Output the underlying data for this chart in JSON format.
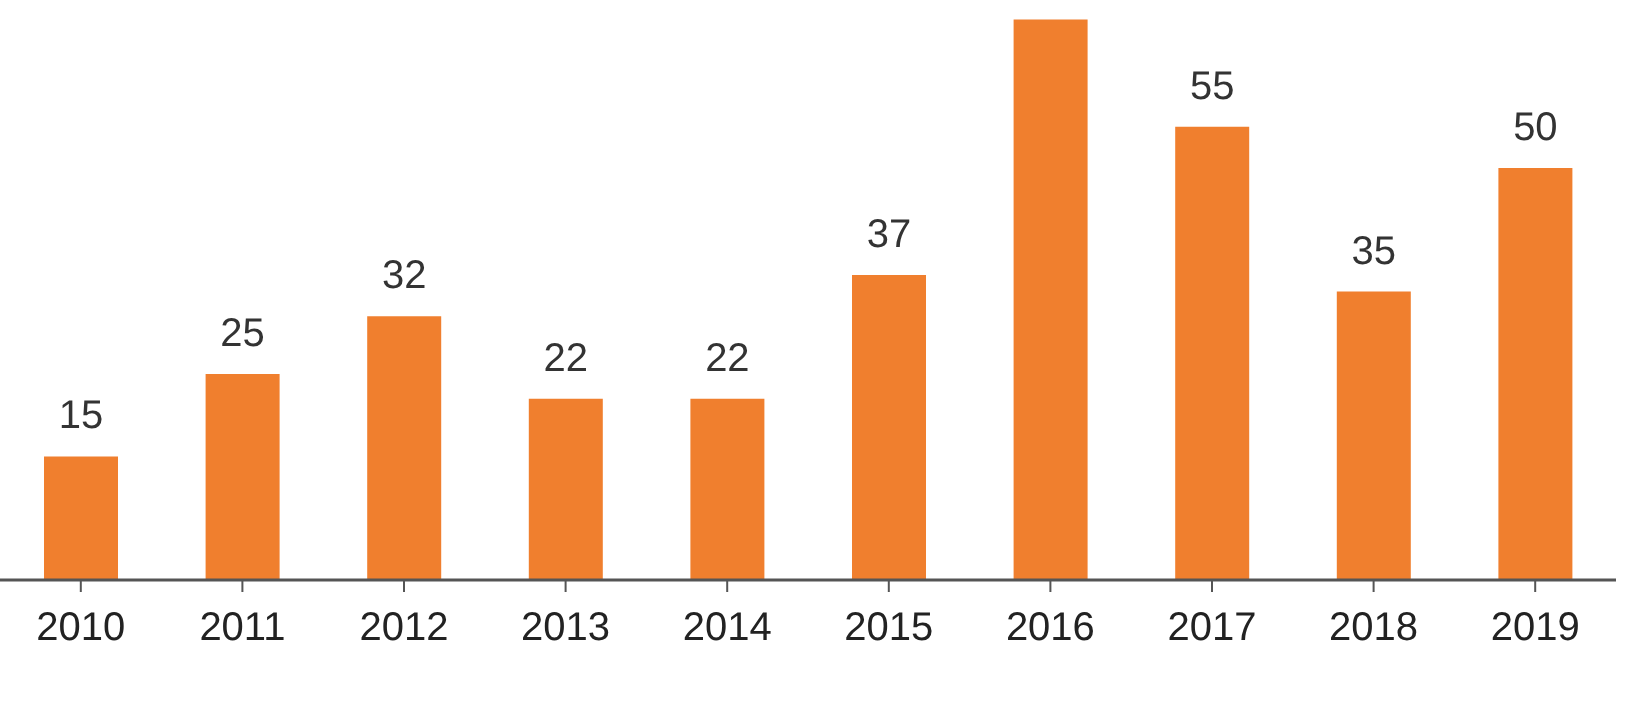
{
  "chart_data": {
    "type": "bar",
    "categories": [
      "2010",
      "2011",
      "2012",
      "2013",
      "2014",
      "2015",
      "2016",
      "2017",
      "2018",
      "2019"
    ],
    "values": [
      15,
      25,
      32,
      22,
      22,
      37,
      68,
      55,
      35,
      50
    ],
    "value_labels": [
      "15",
      "25",
      "32",
      "22",
      "22",
      "37",
      null,
      "55",
      "35",
      "50"
    ],
    "color": "#f07f2e"
  }
}
